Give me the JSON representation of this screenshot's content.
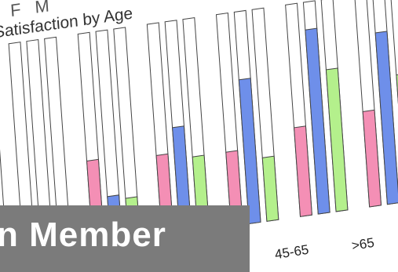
{
  "header_fragment": "J F M",
  "banner": {
    "text": "n Member",
    "color": "#7b7b7b"
  },
  "chart_data": {
    "type": "bar",
    "title": "Satisfaction by Age",
    "ylim": [
      0,
      100
    ],
    "grid": false,
    "categories": [
      "",
      "",
      "",
      "",
      "45-65",
      ">65"
    ],
    "series": [
      {
        "values": [
          0,
          40,
          38,
          35,
          42,
          45
        ],
        "color": "#f48fb5"
      },
      {
        "values": [
          0,
          22,
          50,
          68,
          87,
          81
        ],
        "color": "#6e8fea"
      },
      {
        "values": [
          0,
          20,
          35,
          30,
          67,
          60
        ],
        "color": "#b4f08c"
      }
    ],
    "leading_partial_bar": {
      "value": 10,
      "color": "#6e8fea"
    }
  }
}
